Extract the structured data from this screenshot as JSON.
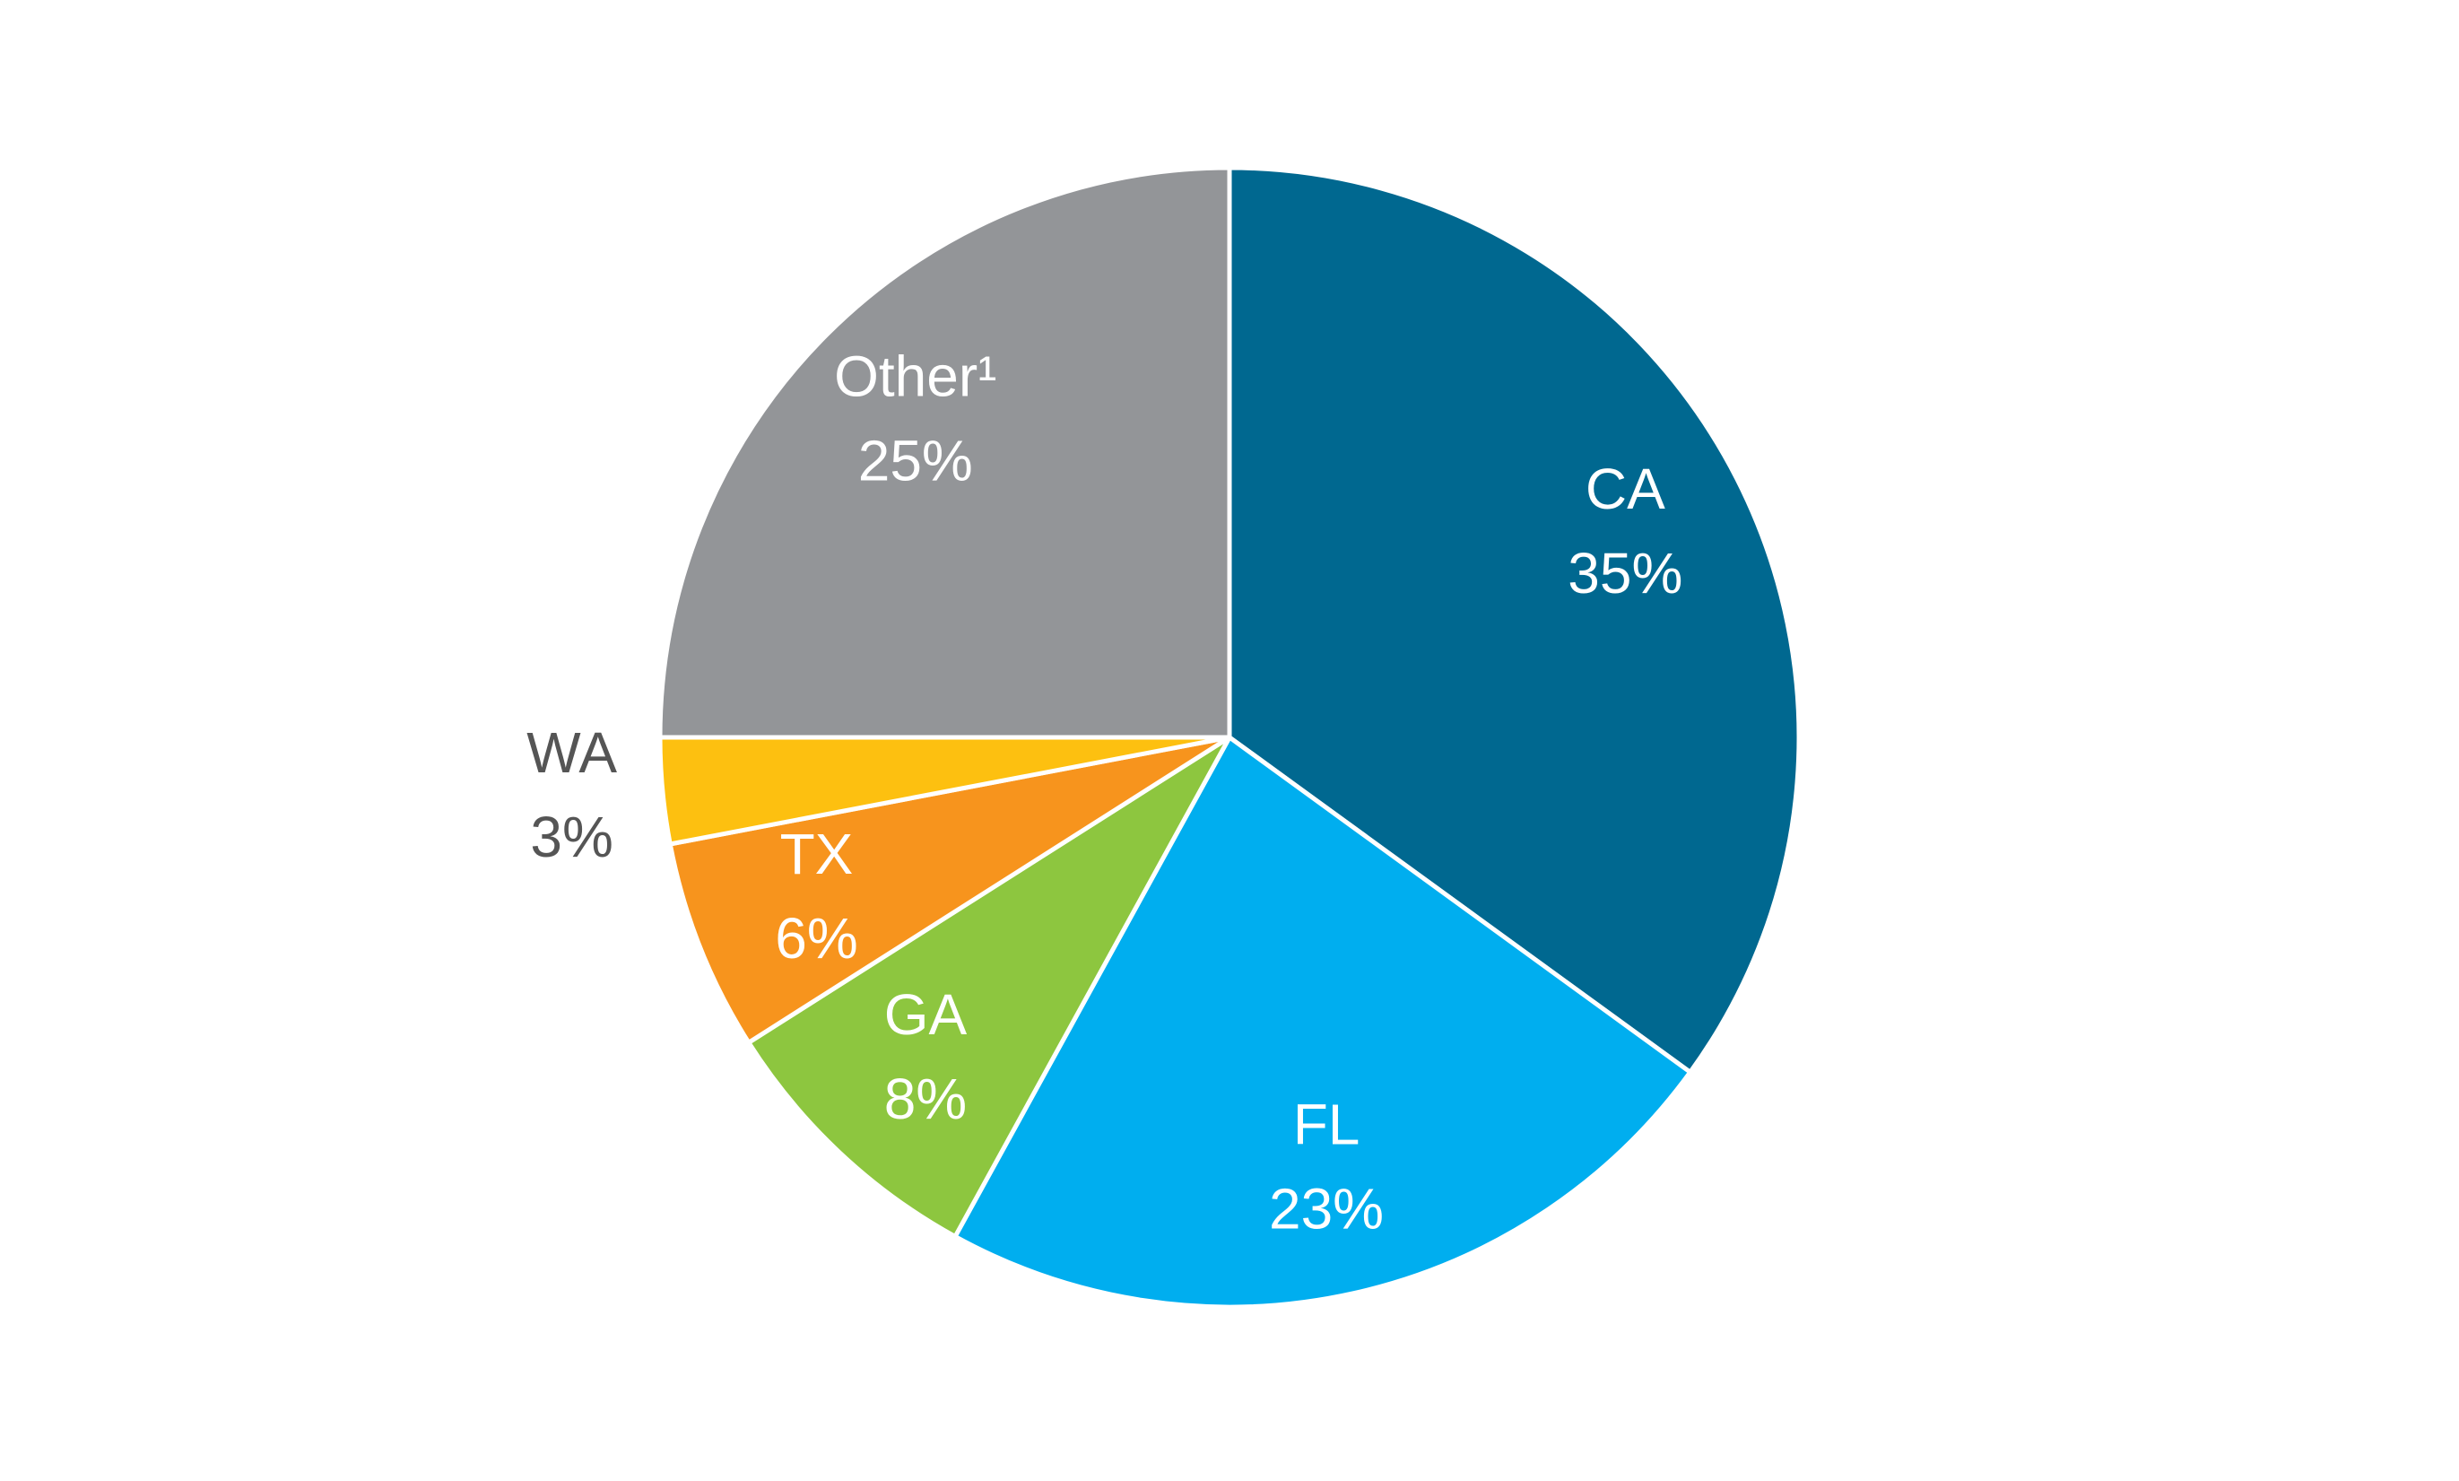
{
  "chart_data": {
    "type": "pie",
    "categories": [
      "CA",
      "FL",
      "GA",
      "TX",
      "WA",
      "Other¹"
    ],
    "values": [
      35,
      23,
      8,
      6,
      3,
      25
    ],
    "value_labels": [
      "35%",
      "23%",
      "8%",
      "6%",
      "3%",
      "25%"
    ],
    "colors": [
      "#006890",
      "#00aeef",
      "#8dc63f",
      "#f7941d",
      "#fdc010",
      "#939598"
    ]
  }
}
